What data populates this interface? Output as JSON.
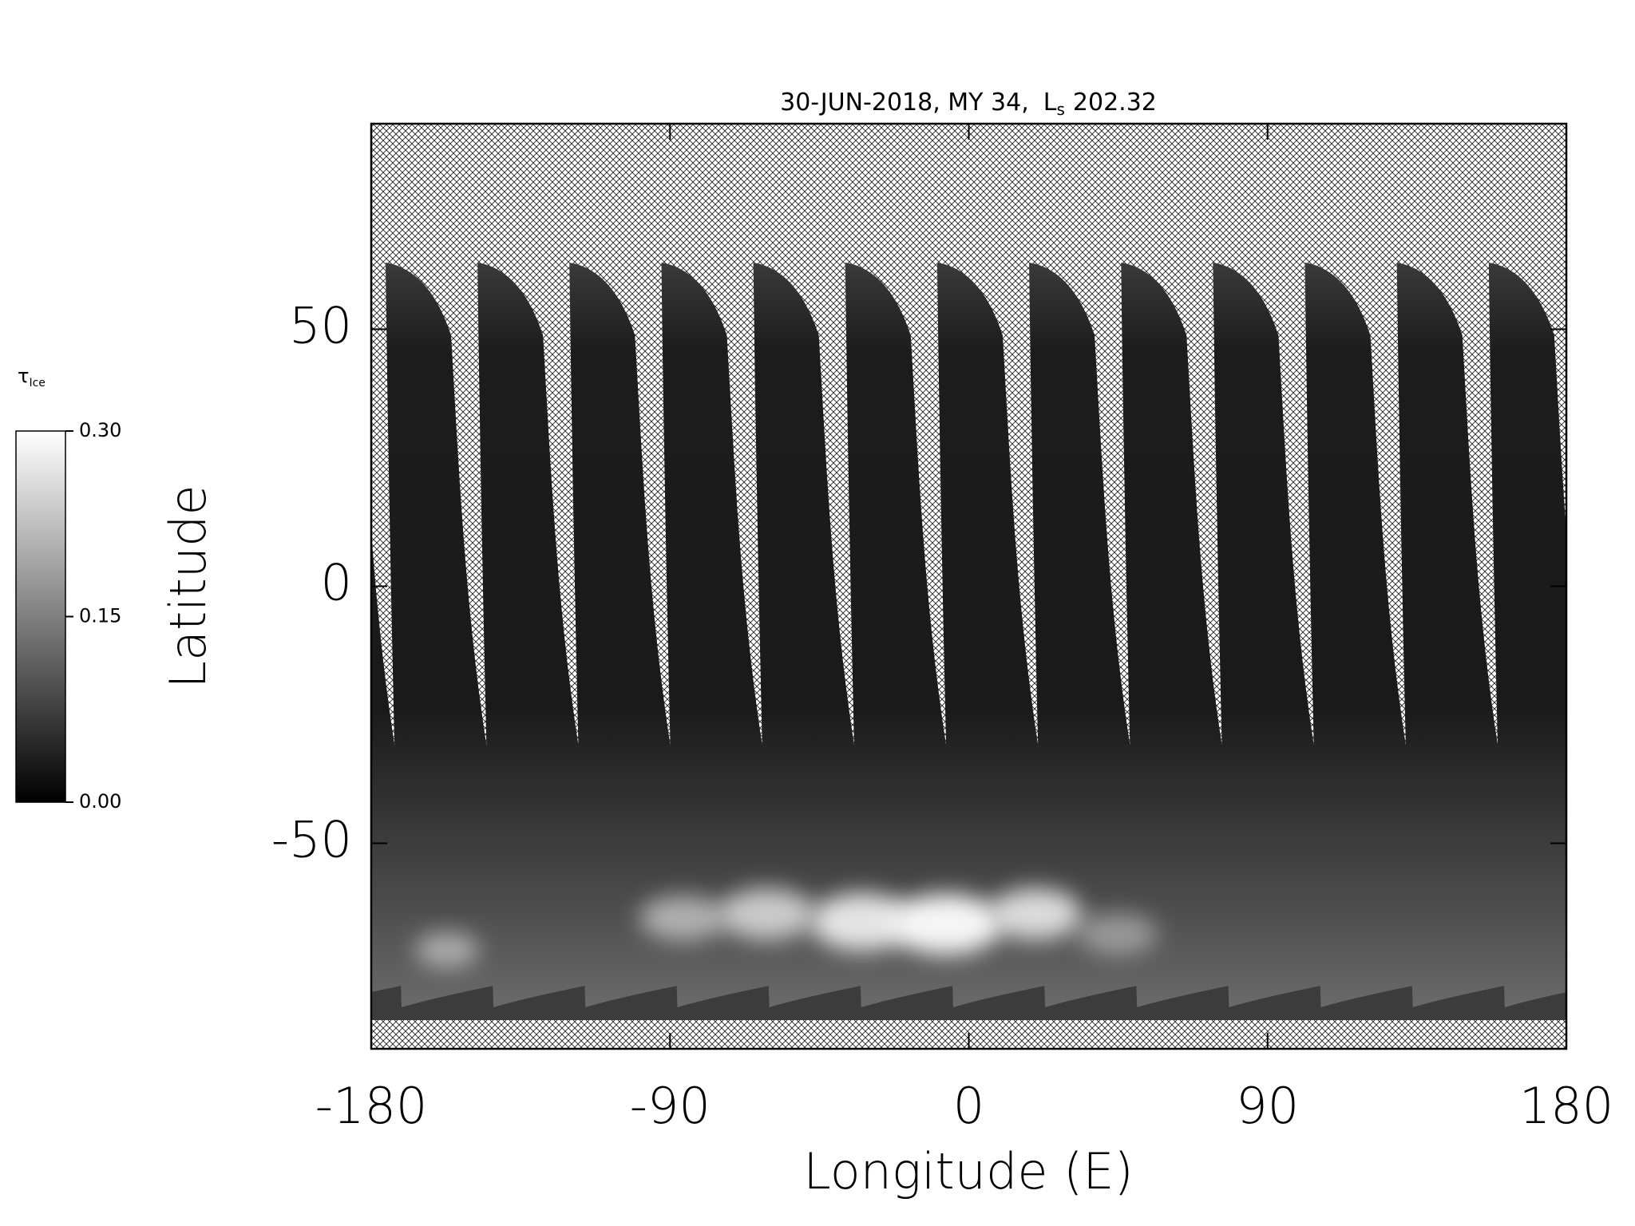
{
  "chart_data": {
    "type": "map",
    "title": [
      "30-JUN-2018, MY 34,",
      "L",
      "s",
      "202.32"
    ],
    "x_label": "Longitude (E)",
    "y_label": "Latitude",
    "xlim": [
      -180,
      180
    ],
    "xticks": [
      -180,
      -90,
      0,
      90,
      180
    ],
    "ylim": [
      -90,
      90
    ],
    "yticks": [
      -50,
      0,
      50
    ],
    "colorbar": {
      "label": [
        "τ",
        "Ice"
      ],
      "lim": [
        0,
        0.3
      ],
      "ticks": [
        {
          "value": 0,
          "label": "0.00"
        },
        {
          "value": 0.15,
          "label": "0.15"
        },
        {
          "value": 0.3,
          "label": "0.30"
        }
      ],
      "colors": [
        "#000000",
        "#ffffff"
      ]
    }
  }
}
